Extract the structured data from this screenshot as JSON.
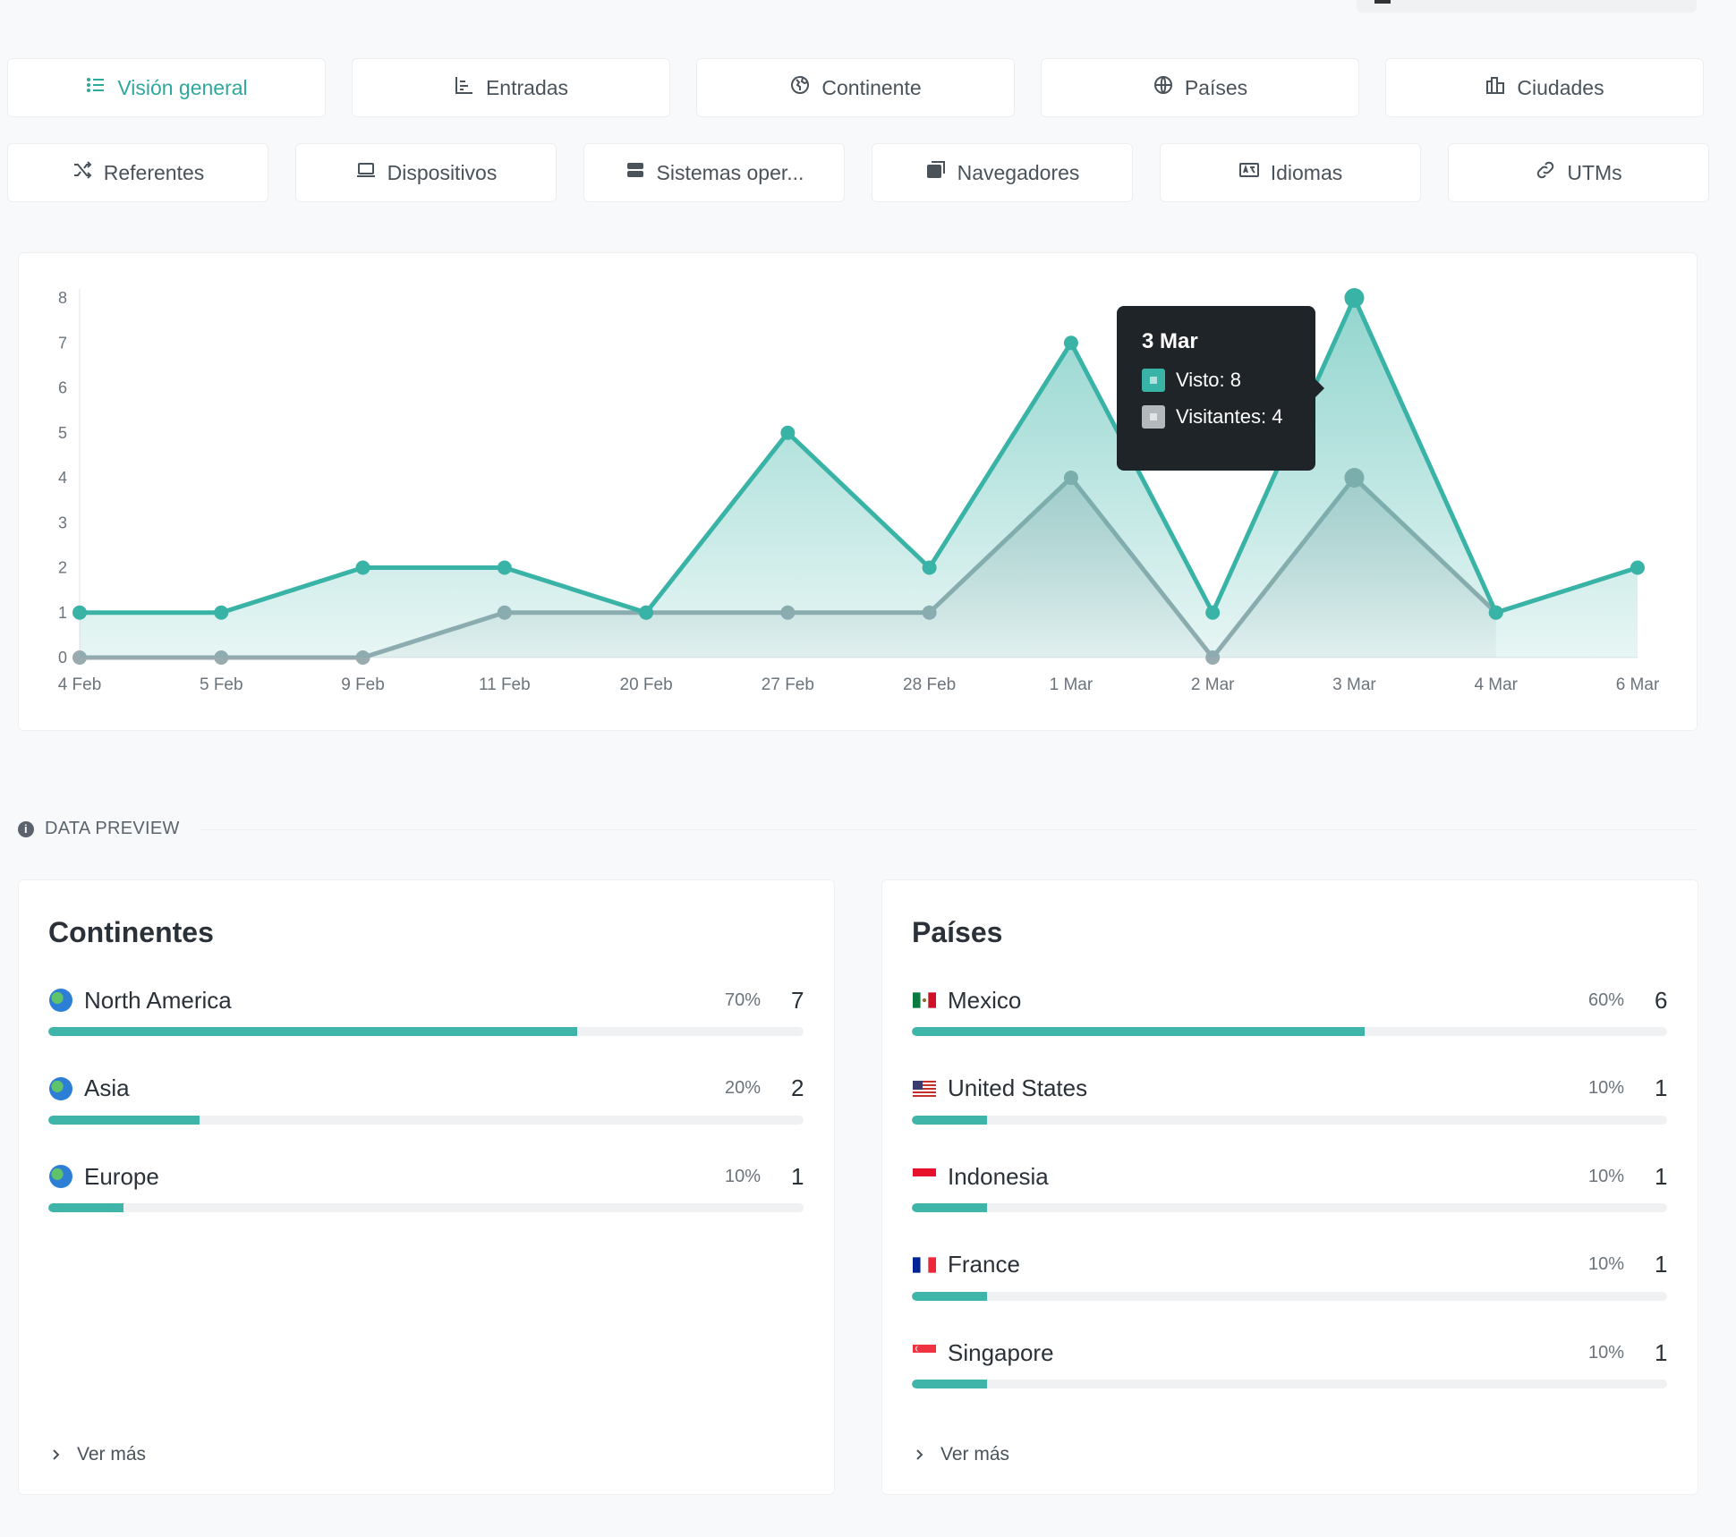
{
  "tabs_row1": [
    {
      "label": "Visión general",
      "icon": "list-icon",
      "active": true
    },
    {
      "label": "Entradas",
      "icon": "bar-chart-icon",
      "active": false
    },
    {
      "label": "Continente",
      "icon": "globe-europe-icon",
      "active": false
    },
    {
      "label": "Países",
      "icon": "globe-icon",
      "active": false
    },
    {
      "label": "Ciudades",
      "icon": "city-icon",
      "active": false
    }
  ],
  "tabs_row2": [
    {
      "label": "Referentes",
      "icon": "shuffle-icon"
    },
    {
      "label": "Dispositivos",
      "icon": "laptop-icon"
    },
    {
      "label": "Sistemas oper...",
      "icon": "server-icon"
    },
    {
      "label": "Navegadores",
      "icon": "browsers-icon"
    },
    {
      "label": "Idiomas",
      "icon": "translate-icon"
    },
    {
      "label": "UTMs",
      "icon": "link-icon"
    }
  ],
  "chart_data": {
    "type": "area",
    "categories": [
      "4 Feb",
      "5 Feb",
      "9 Feb",
      "11 Feb",
      "20 Feb",
      "27 Feb",
      "28 Feb",
      "1 Mar",
      "2 Mar",
      "3 Mar",
      "4 Mar",
      "6 Mar"
    ],
    "series": [
      {
        "name": "Visto",
        "color": "#3ab3a7",
        "values": [
          1,
          1,
          2,
          2,
          1,
          5,
          2,
          7,
          1,
          8,
          1,
          2
        ]
      },
      {
        "name": "Visitantes",
        "color": "#9aabb0",
        "values": [
          0,
          0,
          0,
          1,
          1,
          1,
          1,
          4,
          0,
          4,
          1,
          null
        ]
      }
    ],
    "yticks": [
      0,
      1,
      2,
      3,
      4,
      5,
      6,
      7,
      8
    ],
    "ylim": [
      0,
      8
    ],
    "grid": false
  },
  "tooltip": {
    "title": "3 Mar",
    "line1": "Visto: 8",
    "line2": "Visitantes: 4"
  },
  "section_label": "DATA PREVIEW",
  "continentes": {
    "title": "Continentes",
    "more": "Ver más",
    "items": [
      {
        "name": "North America",
        "pct_label": "70%",
        "value": "7",
        "pct": 70
      },
      {
        "name": "Asia",
        "pct_label": "20%",
        "value": "2",
        "pct": 20
      },
      {
        "name": "Europe",
        "pct_label": "10%",
        "value": "1",
        "pct": 10
      }
    ]
  },
  "paises": {
    "title": "Países",
    "more": "Ver más",
    "items": [
      {
        "name": "Mexico",
        "pct_label": "60%",
        "value": "6",
        "pct": 60,
        "flag": "mexico-flag-icon"
      },
      {
        "name": "United States",
        "pct_label": "10%",
        "value": "1",
        "pct": 10,
        "flag": "united-states-flag-icon"
      },
      {
        "name": "Indonesia",
        "pct_label": "10%",
        "value": "1",
        "pct": 10,
        "flag": "indonesia-flag-icon"
      },
      {
        "name": "France",
        "pct_label": "10%",
        "value": "1",
        "pct": 10,
        "flag": "france-flag-icon"
      },
      {
        "name": "Singapore",
        "pct_label": "10%",
        "value": "1",
        "pct": 10,
        "flag": "singapore-flag-icon"
      }
    ]
  },
  "colors": {
    "accent": "#3ab3a7",
    "secondary": "#9aabb0",
    "tooltip_bg": "#1f2428"
  }
}
